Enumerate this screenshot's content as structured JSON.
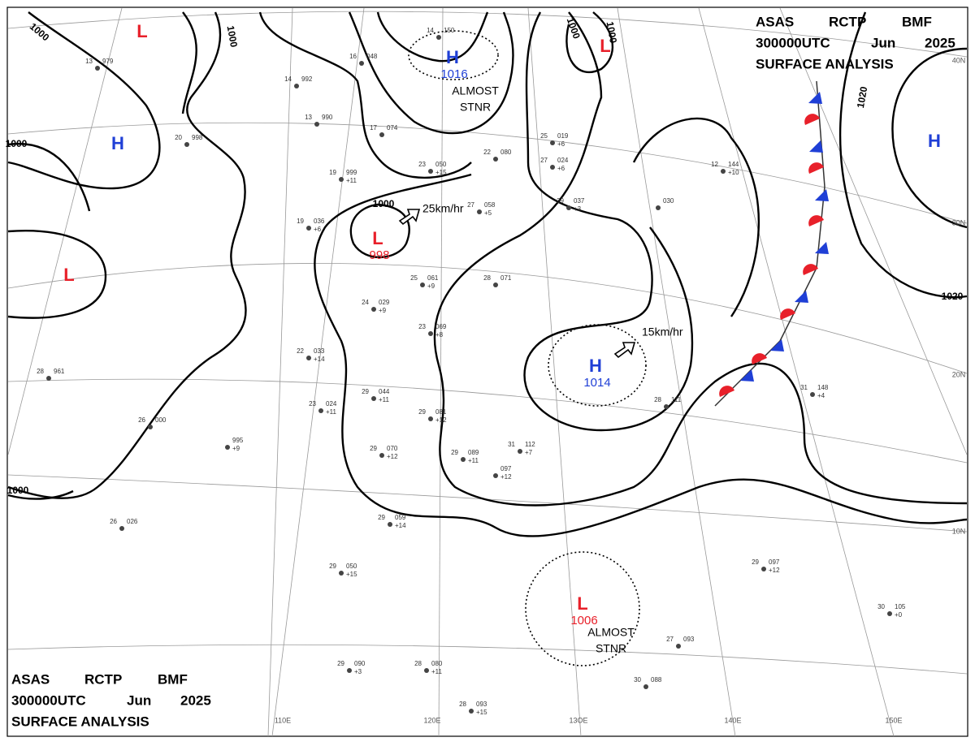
{
  "headers": [
    {
      "agency": "ASAS",
      "station": "RCTP",
      "code": "BMF",
      "time": "300000UTC",
      "month": "Jun",
      "year": "2025",
      "title": "SURFACE ANALYSIS"
    },
    {
      "agency": "ASAS",
      "station": "RCTP",
      "code": "BMF",
      "time": "300000UTC",
      "month": "Jun",
      "year": "2025",
      "title": "SURFACE ANALYSIS"
    }
  ],
  "pressure_centers": [
    {
      "type": "L"
    },
    {
      "type": "H"
    },
    {
      "type": "L"
    },
    {
      "type": "H",
      "value": 1016
    },
    {
      "type": "L",
      "value": 998
    },
    {
      "type": "H",
      "value": 1014
    },
    {
      "type": "L",
      "value": 1006
    },
    {
      "type": "H"
    },
    {
      "type": "L"
    }
  ],
  "isobar_labels": [
    "1000",
    "1000",
    "1000",
    "1000",
    "1000",
    "1000",
    "1000",
    "1020",
    "1020"
  ],
  "motions": [
    "25km/hr",
    "15km/hr"
  ],
  "notes": [
    {
      "lines": [
        "ALMOST",
        "STNR"
      ]
    },
    {
      "lines": [
        "ALMOST",
        "STNR"
      ]
    }
  ],
  "latitudes": [
    "40N",
    "30N",
    "20N",
    "10N"
  ],
  "longitudes": [
    "110E",
    "120E",
    "13OE",
    "140E",
    "150E"
  ],
  "stations": [
    {
      "temp": "14",
      "pres": "150"
    },
    {
      "temp": "16",
      "pres": "048"
    },
    {
      "temp": "13",
      "pres": "979"
    },
    {
      "temp": "14",
      "pres": "992"
    },
    {
      "temp": "13",
      "pres": "990"
    },
    {
      "temp": "17",
      "pres": "074"
    },
    {
      "temp": "20",
      "pres": "998"
    },
    {
      "temp": "19",
      "pres": "999",
      "tend": "+11"
    },
    {
      "temp": "23",
      "pres": "050",
      "tend": "+15"
    },
    {
      "temp": "22",
      "pres": "080"
    },
    {
      "temp": "25",
      "pres": "019",
      "tend": "+6"
    },
    {
      "temp": "27",
      "pres": "024",
      "tend": "+6"
    },
    {
      "temp": "29",
      "pres": "037",
      "tend": "+3"
    },
    {
      "temp": "27",
      "pres": "058",
      "tend": "+5"
    },
    {
      "temp": "19",
      "pres": "036",
      "tend": "+6"
    },
    {
      "temp": "24",
      "pres": "029",
      "tend": "+9"
    },
    {
      "temp": "25",
      "pres": "061",
      "tend": "+9"
    },
    {
      "temp": "28",
      "pres": "071"
    },
    {
      "temp": "23",
      "pres": "069",
      "tend": "+8"
    },
    {
      "temp": "22",
      "pres": "033",
      "tend": "+14"
    },
    {
      "temp": "29",
      "pres": "044",
      "tend": "+11"
    },
    {
      "temp": "23",
      "pres": "024",
      "tend": "+11"
    },
    {
      "temp": "29",
      "pres": "081",
      "tend": "+12"
    },
    {
      "temp": "29",
      "pres": "070",
      "tend": "+12"
    },
    {
      "temp": "29",
      "pres": "089",
      "tend": "+11"
    },
    {
      "pres": "097",
      "tend": "+12"
    },
    {
      "temp": "29",
      "pres": "059",
      "tend": "+14"
    },
    {
      "temp": "29",
      "pres": "050",
      "tend": "+15"
    },
    {
      "temp": "28",
      "pres": "961"
    },
    {
      "temp": "26",
      "pres": "000"
    },
    {
      "pres": "995",
      "tend": "+9"
    },
    {
      "temp": "26",
      "pres": "026"
    },
    {
      "temp": "31",
      "pres": "112",
      "tend": "+7"
    },
    {
      "temp": "28",
      "pres": "111"
    },
    {
      "temp": "31",
      "pres": "148",
      "tend": "+4"
    },
    {
      "temp": "29",
      "pres": "097",
      "tend": "+12"
    },
    {
      "temp": "30",
      "pres": "105",
      "tend": "+0"
    },
    {
      "temp": "27",
      "pres": "093"
    },
    {
      "temp": "30",
      "pres": "088"
    },
    {
      "temp": "29",
      "pres": "090",
      "tend": "+3"
    },
    {
      "temp": "28",
      "pres": "080",
      "tend": "+11"
    },
    {
      "temp": "28",
      "pres": "093",
      "tend": "+15"
    },
    {
      "temp": "12",
      "pres": "144",
      "tend": "+10"
    },
    {
      "pres": "030"
    }
  ]
}
